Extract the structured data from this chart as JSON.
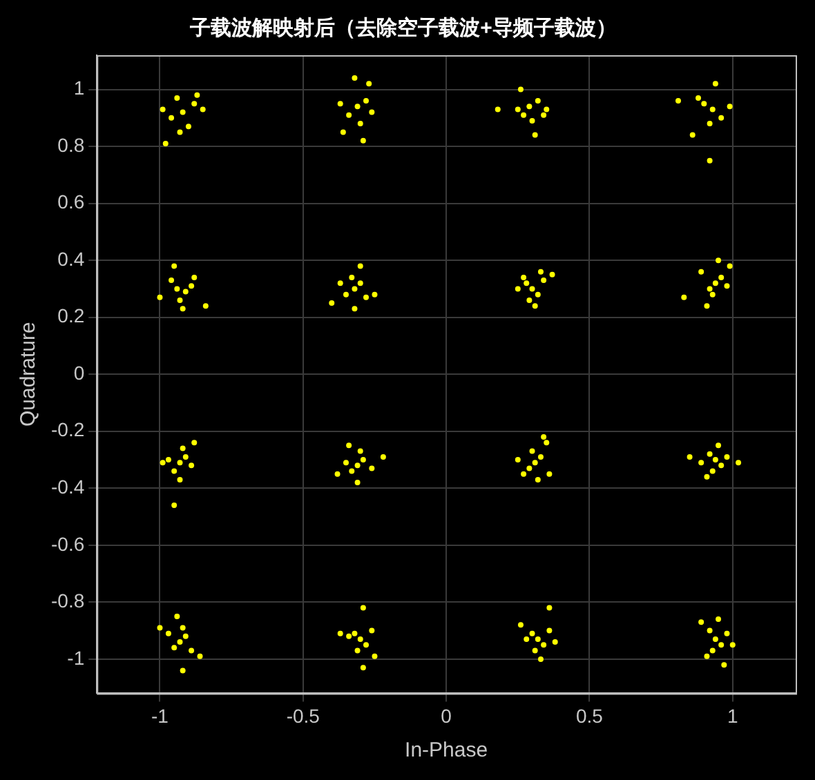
{
  "chart_data": {
    "type": "scatter",
    "title": "子载波解映射后（去除空子载波+导频子载波）",
    "xlabel": "In-Phase",
    "ylabel": "Quadrature",
    "xlim": [
      -1.22,
      1.22
    ],
    "ylim": [
      -1.12,
      1.12
    ],
    "xticks": [
      -1,
      -0.5,
      0,
      0.5,
      1
    ],
    "yticks": [
      -1,
      -0.8,
      -0.6,
      -0.4,
      -0.2,
      0,
      0.2,
      0.4,
      0.6,
      0.8,
      1
    ],
    "grid": true,
    "marker": "circle",
    "series": [
      {
        "color": "#ffff00",
        "x": [
          -0.92,
          -0.88,
          -0.96,
          -0.9,
          -0.85,
          -0.99,
          -0.94,
          -0.98,
          -0.87,
          -0.93,
          -0.31,
          -0.28,
          -0.34,
          -0.3,
          -0.26,
          -0.37,
          -0.32,
          -0.29,
          -0.36,
          -0.27,
          0.29,
          0.27,
          0.32,
          0.3,
          0.25,
          0.34,
          0.26,
          0.18,
          0.31,
          0.35,
          0.93,
          0.9,
          0.96,
          0.92,
          0.88,
          0.99,
          0.94,
          0.92,
          0.81,
          0.86,
          -0.94,
          -0.91,
          -0.96,
          -0.93,
          -0.89,
          -1.0,
          -0.95,
          -0.84,
          -0.92,
          -0.88,
          -0.32,
          -0.3,
          -0.35,
          -0.33,
          -0.28,
          -0.4,
          -0.3,
          -0.25,
          -0.32,
          -0.37,
          0.3,
          0.28,
          0.32,
          0.29,
          0.34,
          0.25,
          0.33,
          0.37,
          0.31,
          0.27,
          0.94,
          0.92,
          0.96,
          0.93,
          0.98,
          0.89,
          0.95,
          0.83,
          0.91,
          0.99,
          -0.93,
          -0.91,
          -0.95,
          -0.92,
          -0.89,
          -0.97,
          -0.88,
          -0.95,
          -0.99,
          -0.93,
          -0.31,
          -0.29,
          -0.33,
          -0.3,
          -0.35,
          -0.26,
          -0.22,
          -0.38,
          -0.31,
          -0.34,
          0.31,
          0.29,
          0.33,
          0.3,
          0.27,
          0.35,
          0.32,
          0.25,
          0.36,
          0.34,
          0.94,
          0.92,
          0.96,
          0.93,
          0.98,
          0.89,
          0.95,
          1.02,
          0.85,
          0.91,
          -0.93,
          -0.91,
          -0.95,
          -0.92,
          -0.89,
          -0.97,
          -0.94,
          -0.92,
          -0.86,
          -1.0,
          -0.3,
          -0.32,
          -0.28,
          -0.31,
          -0.34,
          -0.26,
          -0.29,
          -0.29,
          -0.37,
          -0.25,
          0.32,
          0.3,
          0.34,
          0.31,
          0.28,
          0.36,
          0.36,
          0.33,
          0.26,
          0.38,
          0.94,
          0.92,
          0.96,
          0.93,
          0.98,
          0.91,
          0.95,
          0.97,
          0.89,
          1.0
        ],
        "values": [
          0.92,
          0.95,
          0.9,
          0.87,
          0.93,
          0.93,
          0.97,
          0.81,
          0.98,
          0.85,
          0.94,
          0.96,
          0.91,
          0.88,
          0.92,
          0.95,
          1.04,
          0.82,
          0.85,
          1.02,
          0.94,
          0.91,
          0.96,
          0.89,
          0.93,
          0.91,
          1.0,
          0.93,
          0.84,
          0.93,
          0.93,
          0.95,
          0.9,
          0.88,
          0.97,
          0.94,
          1.02,
          0.75,
          0.96,
          0.84,
          0.3,
          0.29,
          0.33,
          0.26,
          0.31,
          0.27,
          0.38,
          0.24,
          0.23,
          0.34,
          0.3,
          0.32,
          0.28,
          0.34,
          0.27,
          0.25,
          0.38,
          0.28,
          0.23,
          0.32,
          0.3,
          0.32,
          0.28,
          0.26,
          0.33,
          0.3,
          0.36,
          0.35,
          0.24,
          0.34,
          0.32,
          0.3,
          0.34,
          0.28,
          0.31,
          0.36,
          0.4,
          0.27,
          0.24,
          0.38,
          -0.31,
          -0.29,
          -0.34,
          -0.26,
          -0.32,
          -0.3,
          -0.24,
          -0.46,
          -0.31,
          -0.37,
          -0.32,
          -0.3,
          -0.34,
          -0.27,
          -0.31,
          -0.33,
          -0.29,
          -0.35,
          -0.38,
          -0.25,
          -0.31,
          -0.33,
          -0.29,
          -0.27,
          -0.35,
          -0.24,
          -0.37,
          -0.3,
          -0.35,
          -0.22,
          -0.3,
          -0.28,
          -0.32,
          -0.34,
          -0.29,
          -0.31,
          -0.25,
          -0.31,
          -0.29,
          -0.36,
          -0.94,
          -0.92,
          -0.96,
          -0.89,
          -0.97,
          -0.91,
          -0.85,
          -1.04,
          -0.99,
          -0.89,
          -0.93,
          -0.91,
          -0.95,
          -0.97,
          -0.92,
          -0.9,
          -0.82,
          -1.03,
          -0.91,
          -0.99,
          -0.93,
          -0.91,
          -0.95,
          -0.97,
          -0.93,
          -0.9,
          -0.82,
          -1.0,
          -0.88,
          -0.94,
          -0.93,
          -0.9,
          -0.95,
          -0.97,
          -0.91,
          -0.99,
          -0.86,
          -1.02,
          -0.87,
          -0.95
        ]
      }
    ]
  }
}
